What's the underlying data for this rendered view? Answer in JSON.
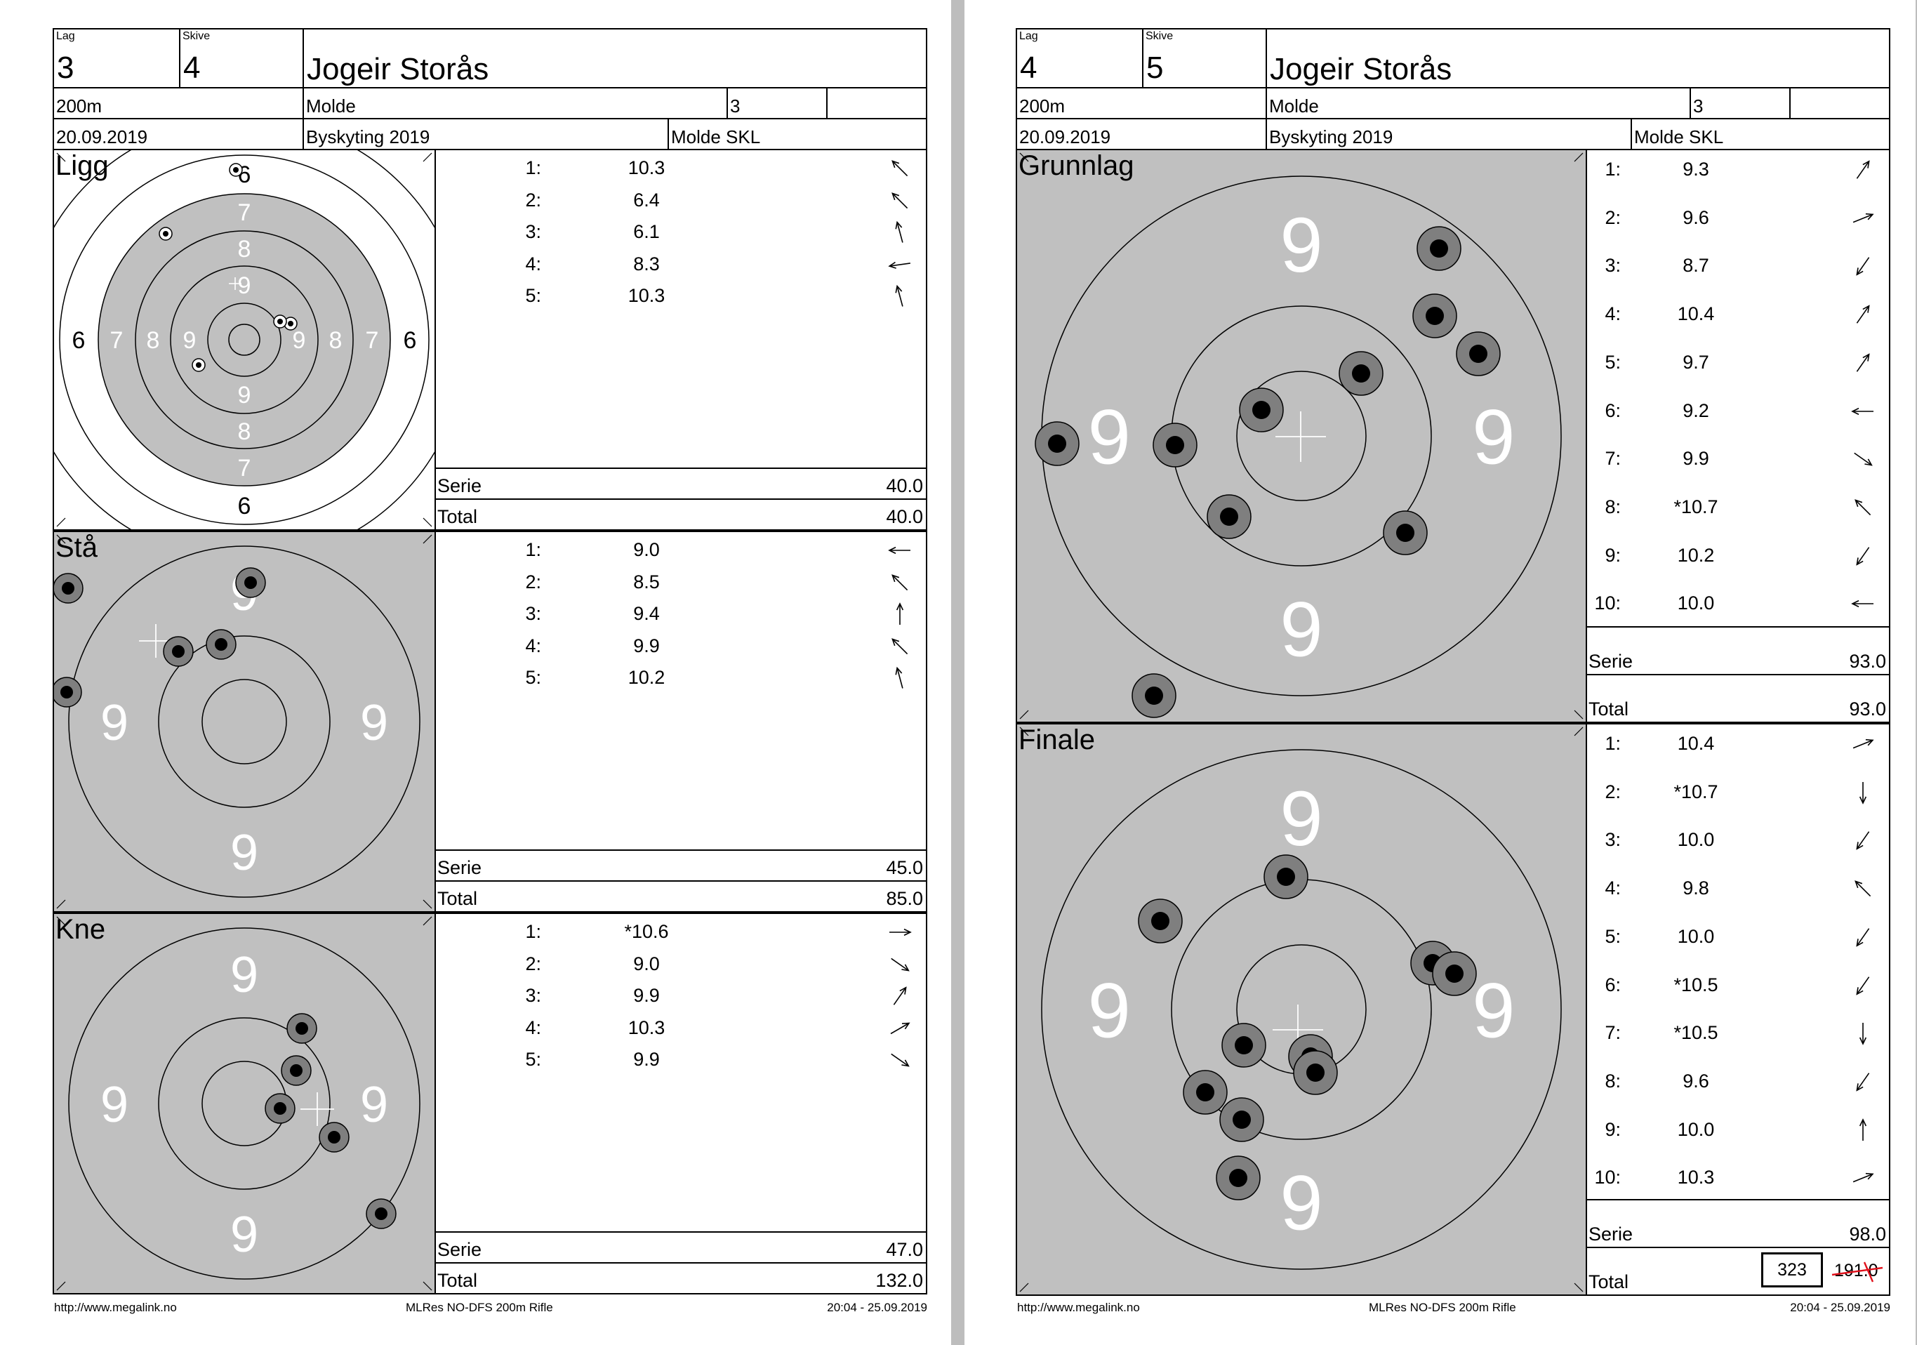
{
  "labels": {
    "lag": "Lag",
    "skive": "Skive",
    "serie": "Serie",
    "total": "Total"
  },
  "colors": {
    "target_grey": "#c0c0c0",
    "shot_outer": "#7f7f7f",
    "shot_inner": "#000000",
    "strike_red": "#e0101a"
  },
  "cards": [
    {
      "lag": "3",
      "skive": "4",
      "name": "Jogeir Storås",
      "distance": "200m",
      "club": "Molde",
      "class": "3",
      "extra": "",
      "date": "20.09.2019",
      "event": "Byskyting 2019",
      "organizer": "Molde SKL",
      "sections": [
        {
          "title": "Ligg",
          "target_type": "full",
          "ring_numbers": [
            "6",
            "7",
            "8",
            "9"
          ],
          "shots": [
            {
              "num": "1:",
              "value": "10.3",
              "dir": "up-left"
            },
            {
              "num": "2:",
              "value": "6.4",
              "dir": "up-left"
            },
            {
              "num": "3:",
              "value": "6.1",
              "dir": "up-slight-left"
            },
            {
              "num": "4:",
              "value": "8.3",
              "dir": "left-down"
            },
            {
              "num": "5:",
              "value": "10.3",
              "dir": "up-slight-left"
            }
          ],
          "serie": "40.0",
          "total": "40.0"
        },
        {
          "title": "Stå",
          "target_type": "zoom",
          "ring_numbers": [
            "9"
          ],
          "shots": [
            {
              "num": "1:",
              "value": "9.0",
              "dir": "left"
            },
            {
              "num": "2:",
              "value": "8.5",
              "dir": "up-left"
            },
            {
              "num": "3:",
              "value": "9.4",
              "dir": "up"
            },
            {
              "num": "4:",
              "value": "9.9",
              "dir": "up-left"
            },
            {
              "num": "5:",
              "value": "10.2",
              "dir": "up-slight-left"
            }
          ],
          "serie": "45.0",
          "total": "85.0"
        },
        {
          "title": "Kne",
          "target_type": "zoom",
          "ring_numbers": [
            "9"
          ],
          "shots": [
            {
              "num": "1:",
              "value": "*10.6",
              "dir": "right"
            },
            {
              "num": "2:",
              "value": "9.0",
              "dir": "down-right"
            },
            {
              "num": "3:",
              "value": "9.9",
              "dir": "up-right"
            },
            {
              "num": "4:",
              "value": "10.3",
              "dir": "up-right-flat"
            },
            {
              "num": "5:",
              "value": "9.9",
              "dir": "down-right"
            }
          ],
          "serie": "47.0",
          "total": "132.0"
        }
      ],
      "footer": {
        "url": "http://www.megalink.no",
        "program": "MLRes NO-DFS 200m Rifle",
        "timestamp": "20:04 - 25.09.2019"
      }
    },
    {
      "lag": "4",
      "skive": "5",
      "name": "Jogeir Storås",
      "distance": "200m",
      "club": "Molde",
      "class": "3",
      "extra": "",
      "date": "20.09.2019",
      "event": "Byskyting 2019",
      "organizer": "Molde SKL",
      "sections": [
        {
          "title": "Grunnlag",
          "target_type": "zoom",
          "ring_numbers": [
            "9"
          ],
          "shots": [
            {
              "num": "1:",
              "value": "9.3",
              "dir": "up-right"
            },
            {
              "num": "2:",
              "value": "9.6",
              "dir": "right-up"
            },
            {
              "num": "3:",
              "value": "8.7",
              "dir": "down-left"
            },
            {
              "num": "4:",
              "value": "10.4",
              "dir": "up-right"
            },
            {
              "num": "5:",
              "value": "9.7",
              "dir": "up-right"
            },
            {
              "num": "6:",
              "value": "9.2",
              "dir": "left"
            },
            {
              "num": "7:",
              "value": "9.9",
              "dir": "down-right"
            },
            {
              "num": "8:",
              "value": "*10.7",
              "dir": "up-left"
            },
            {
              "num": "9:",
              "value": "10.2",
              "dir": "down-left"
            },
            {
              "num": "10:",
              "value": "10.0",
              "dir": "left"
            }
          ],
          "serie": "93.0",
          "total": "93.0"
        },
        {
          "title": "Finale",
          "target_type": "zoom",
          "ring_numbers": [
            "9"
          ],
          "shots": [
            {
              "num": "1:",
              "value": "10.4",
              "dir": "right-up"
            },
            {
              "num": "2:",
              "value": "*10.7",
              "dir": "down"
            },
            {
              "num": "3:",
              "value": "10.0",
              "dir": "down-left"
            },
            {
              "num": "4:",
              "value": "9.8",
              "dir": "up-left"
            },
            {
              "num": "5:",
              "value": "10.0",
              "dir": "down-left"
            },
            {
              "num": "6:",
              "value": "*10.5",
              "dir": "down-left"
            },
            {
              "num": "7:",
              "value": "*10.5",
              "dir": "down"
            },
            {
              "num": "8:",
              "value": "9.6",
              "dir": "down-left"
            },
            {
              "num": "9:",
              "value": "10.0",
              "dir": "up"
            },
            {
              "num": "10:",
              "value": "10.3",
              "dir": "right-up"
            }
          ],
          "serie": "98.0",
          "total": "",
          "total_boxed": "323",
          "total_struck": "191.0"
        }
      ],
      "footer": {
        "url": "http://www.megalink.no",
        "program": "MLRes NO-DFS 200m Rifle",
        "timestamp": "20:04 - 25.09.2019"
      }
    }
  ]
}
